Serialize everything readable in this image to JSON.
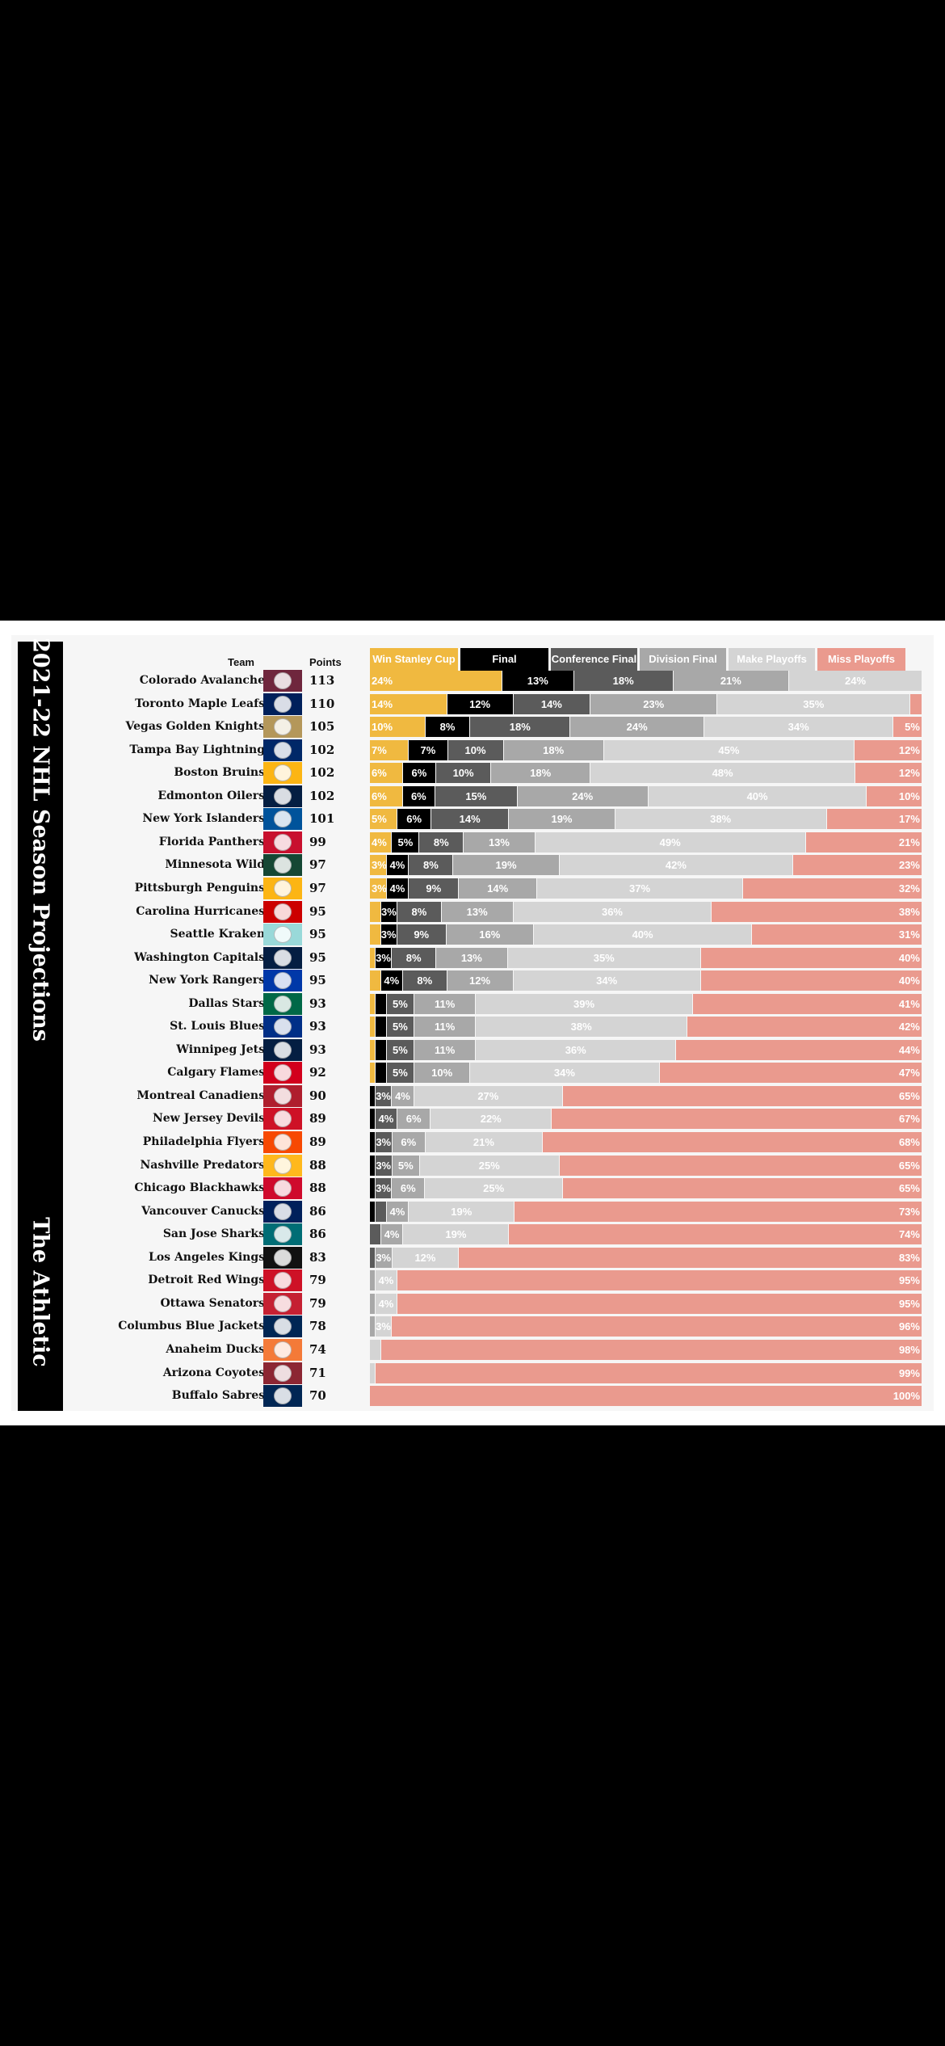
{
  "title": "2021-22 NHL Season Projections",
  "brand": "The Athletic",
  "headers": {
    "team": "Team",
    "points": "Points"
  },
  "chart_data": {
    "type": "bar",
    "stacked": true,
    "unit": "%",
    "stages": [
      {
        "name": "Win Stanley Cup",
        "color": "#f0b940",
        "text_color": "#ffffff"
      },
      {
        "name": "Final",
        "color": "#000000",
        "text_color": "#ffffff"
      },
      {
        "name": "Conference Final",
        "color": "#5b5b5b",
        "text_color": "#ffffff"
      },
      {
        "name": "Division Final",
        "color": "#a8a8a8",
        "text_color": "#ffffff"
      },
      {
        "name": "Make Playoffs",
        "color": "#d4d4d4",
        "text_color": "#ffffff"
      },
      {
        "name": "Miss Playoffs",
        "color": "#ea9a8e",
        "text_color": "#ffffff"
      }
    ],
    "teams": [
      {
        "name": "Colorado Avalanche",
        "points": "113",
        "logo_color": "#6f263d",
        "values": [
          24,
          13,
          18,
          21,
          24,
          0
        ]
      },
      {
        "name": "Toronto Maple Leafs",
        "points": "110",
        "logo_color": "#00205b",
        "values": [
          14,
          12,
          14,
          23,
          35,
          2
        ]
      },
      {
        "name": "Vegas Golden Knights",
        "points": "105",
        "logo_color": "#b4975a",
        "values": [
          10,
          8,
          18,
          24,
          34,
          5
        ]
      },
      {
        "name": "Tampa Bay Lightning",
        "points": "102",
        "logo_color": "#002868",
        "values": [
          7,
          7,
          10,
          18,
          45,
          12
        ]
      },
      {
        "name": "Boston Bruins",
        "points": "102",
        "logo_color": "#fcb514",
        "values": [
          6,
          6,
          10,
          18,
          48,
          12
        ]
      },
      {
        "name": "Edmonton Oilers",
        "points": "102",
        "logo_color": "#041e42",
        "values": [
          6,
          6,
          15,
          24,
          40,
          10
        ]
      },
      {
        "name": "New York Islanders",
        "points": "101",
        "logo_color": "#00539b",
        "values": [
          5,
          6,
          14,
          19,
          38,
          17
        ]
      },
      {
        "name": "Florida Panthers",
        "points": "99",
        "logo_color": "#c8102e",
        "values": [
          4,
          5,
          8,
          13,
          49,
          21
        ]
      },
      {
        "name": "Minnesota Wild",
        "points": "97",
        "logo_color": "#154734",
        "values": [
          3,
          4,
          8,
          19,
          42,
          23
        ]
      },
      {
        "name": "Pittsburgh Penguins",
        "points": "97",
        "logo_color": "#fcb514",
        "values": [
          3,
          4,
          9,
          14,
          37,
          32
        ]
      },
      {
        "name": "Carolina Hurricanes",
        "points": "95",
        "logo_color": "#cc0000",
        "values": [
          2,
          3,
          8,
          13,
          36,
          38
        ]
      },
      {
        "name": "Seattle Kraken",
        "points": "95",
        "logo_color": "#99d9d9",
        "values": [
          2,
          3,
          9,
          16,
          40,
          31
        ]
      },
      {
        "name": "Washington Capitals",
        "points": "95",
        "logo_color": "#041e42",
        "values": [
          1,
          3,
          8,
          13,
          35,
          40
        ]
      },
      {
        "name": "New York Rangers",
        "points": "95",
        "logo_color": "#0038a8",
        "values": [
          2,
          4,
          8,
          12,
          34,
          40
        ]
      },
      {
        "name": "Dallas Stars",
        "points": "93",
        "logo_color": "#006847",
        "values": [
          1,
          2,
          5,
          11,
          39,
          41
        ]
      },
      {
        "name": "St. Louis Blues",
        "points": "93",
        "logo_color": "#002f87",
        "values": [
          1,
          2,
          5,
          11,
          38,
          42
        ]
      },
      {
        "name": "Winnipeg Jets",
        "points": "93",
        "logo_color": "#041e42",
        "values": [
          1,
          2,
          5,
          11,
          36,
          44
        ]
      },
      {
        "name": "Calgary Flames",
        "points": "92",
        "logo_color": "#d2001c",
        "values": [
          1,
          2,
          5,
          10,
          34,
          47
        ]
      },
      {
        "name": "Montreal Canadiens",
        "points": "90",
        "logo_color": "#af1e2d",
        "values": [
          0,
          1,
          3,
          4,
          27,
          65
        ]
      },
      {
        "name": "New Jersey Devils",
        "points": "89",
        "logo_color": "#ce1126",
        "values": [
          0,
          1,
          4,
          6,
          22,
          67
        ]
      },
      {
        "name": "Philadelphia Flyers",
        "points": "89",
        "logo_color": "#f74902",
        "values": [
          0,
          1,
          3,
          6,
          21,
          68
        ]
      },
      {
        "name": "Nashville Predators",
        "points": "88",
        "logo_color": "#ffb81c",
        "values": [
          0,
          1,
          3,
          5,
          25,
          65
        ]
      },
      {
        "name": "Chicago Blackhawks",
        "points": "88",
        "logo_color": "#cf0a2c",
        "values": [
          0,
          1,
          3,
          6,
          25,
          65
        ]
      },
      {
        "name": "Vancouver Canucks",
        "points": "86",
        "logo_color": "#00205b",
        "values": [
          0,
          1,
          2,
          4,
          19,
          73
        ]
      },
      {
        "name": "San Jose Sharks",
        "points": "86",
        "logo_color": "#006d75",
        "values": [
          0,
          0,
          2,
          4,
          19,
          74
        ]
      },
      {
        "name": "Los Angeles Kings",
        "points": "83",
        "logo_color": "#111111",
        "values": [
          0,
          0,
          1,
          3,
          12,
          83
        ]
      },
      {
        "name": "Detroit Red Wings",
        "points": "79",
        "logo_color": "#ce1126",
        "values": [
          0,
          0,
          0,
          1,
          4,
          95
        ]
      },
      {
        "name": "Ottawa Senators",
        "points": "79",
        "logo_color": "#c52032",
        "values": [
          0,
          0,
          0,
          1,
          4,
          95
        ]
      },
      {
        "name": "Columbus Blue Jackets",
        "points": "78",
        "logo_color": "#002654",
        "values": [
          0,
          0,
          0,
          1,
          3,
          96
        ]
      },
      {
        "name": "Anaheim Ducks",
        "points": "74",
        "logo_color": "#f47a38",
        "values": [
          0,
          0,
          0,
          0,
          2,
          98
        ]
      },
      {
        "name": "Arizona Coyotes",
        "points": "71",
        "logo_color": "#8c2633",
        "values": [
          0,
          0,
          0,
          0,
          1,
          99
        ]
      },
      {
        "name": "Buffalo Sabres",
        "points": "70",
        "logo_color": "#002654",
        "values": [
          0,
          0,
          0,
          0,
          0,
          100
        ]
      }
    ]
  }
}
